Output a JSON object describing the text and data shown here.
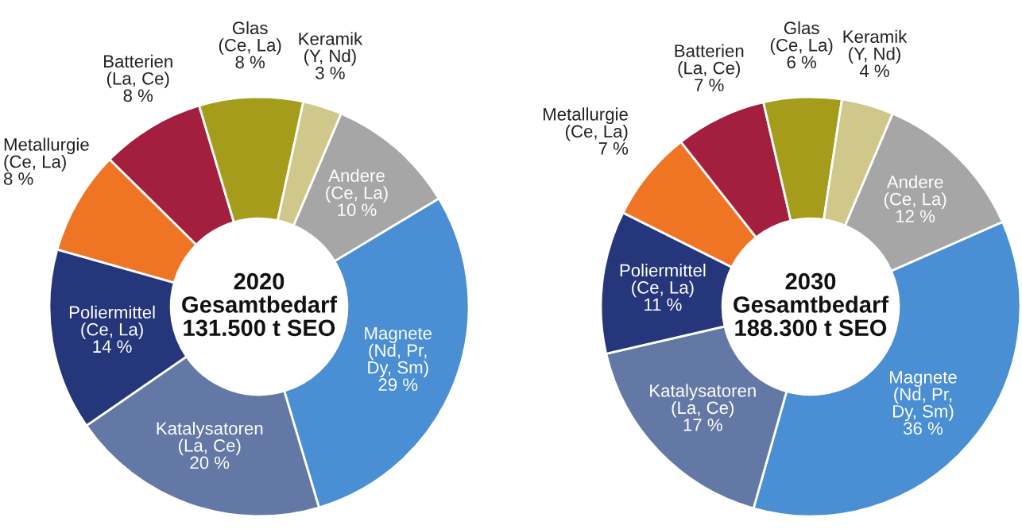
{
  "chart_data": [
    {
      "type": "donut",
      "title": "2020\nGesamtbedarf\n131.500 t SEO",
      "categories": [
        "Andere\n(Ce, La)",
        "Magnete\n(Nd, Pr,\nDy, Sm)",
        "Katalysatoren\n(La, Ce)",
        "Poliermittel\n(Ce, La)",
        "Metallurgie\n(Ce, La)",
        "Batterien\n(La, Ce)",
        "Glas\n(Ce, La)",
        "Keramik\n(Y, Nd)"
      ],
      "values": [
        10,
        29,
        20,
        14,
        8,
        8,
        8,
        3
      ],
      "value_labels": [
        "10 %",
        "29 %",
        "20 %",
        "14 %",
        "8 %",
        "8 %",
        "8 %",
        "3 %"
      ],
      "colors": [
        "#a6a6a6",
        "#4a8fd3",
        "#6378a4",
        "#25367a",
        "#ef7525",
        "#a41e3d",
        "#a69c1c",
        "#cfc88a"
      ]
    },
    {
      "type": "donut",
      "title": "2030\nGesamtbedarf\n188.300 t SEO",
      "categories": [
        "Andere\n(Ce, La)",
        "Magnete\n(Nd, Pr,\nDy, Sm)",
        "Katalysatoren\n(La, Ce)",
        "Poliermittel\n(Ce, La)",
        "Metallurgie\n(Ce, La)",
        "Batterien\n(La, Ce)",
        "Glas\n(Ce, La)",
        "Keramik\n(Y, Nd)"
      ],
      "values": [
        12,
        36,
        17,
        11,
        7,
        7,
        6,
        4
      ],
      "value_labels": [
        "12 %",
        "36 %",
        "17 %",
        "11 %",
        "7 %",
        "7 %",
        "6 %",
        "4 %"
      ],
      "colors": [
        "#a6a6a6",
        "#4a8fd3",
        "#6378a4",
        "#25367a",
        "#ef7525",
        "#a41e3d",
        "#a69c1c",
        "#cfc88a"
      ]
    }
  ]
}
